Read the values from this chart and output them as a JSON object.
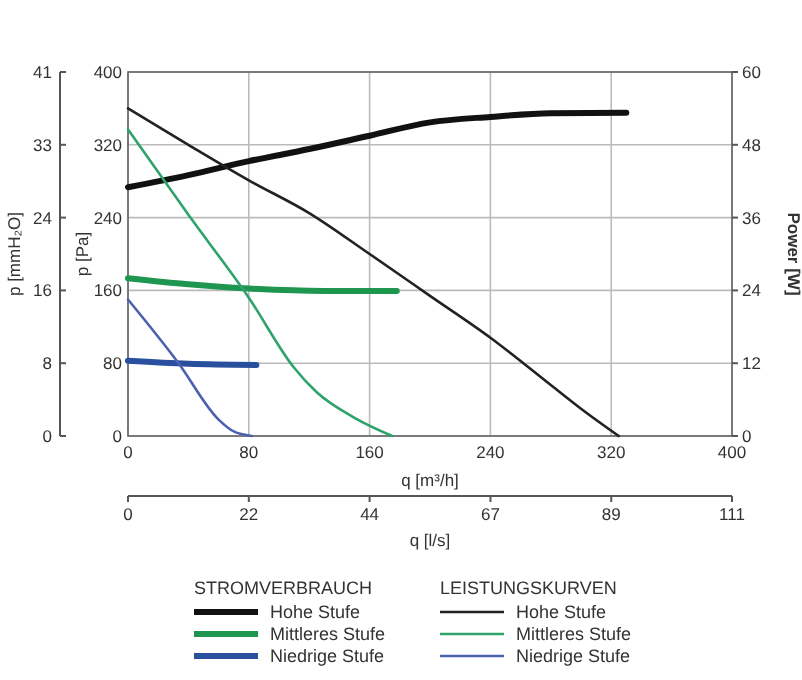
{
  "chart_data": {
    "type": "line",
    "xlabel": "q [m³/h]",
    "ylabel": "p [Pa]",
    "y2label": "Power [W]",
    "y3label": "p [mmH₂O]",
    "x2label": "q [l/s]",
    "xlim": [
      0,
      400
    ],
    "xticks": [
      0,
      80,
      160,
      240,
      320,
      400
    ],
    "ylim": [
      0,
      400
    ],
    "yticks": [
      0,
      80,
      160,
      240,
      320,
      400
    ],
    "y2lim": [
      0,
      60
    ],
    "y2ticks": [
      0,
      12,
      24,
      36,
      48,
      60
    ],
    "y3lim": [
      0,
      40.789
    ],
    "y3ticks": [
      0,
      {
        "value": 8.158,
        "label": "8"
      },
      {
        "value": 16.315,
        "label": "16"
      },
      {
        "value": 24.473,
        "label": "24"
      },
      {
        "value": 32.631,
        "label": "33"
      },
      {
        "value": 40.789,
        "label": "41"
      }
    ],
    "x2lim": [
      0,
      111.1
    ],
    "x2ticks": [
      0,
      {
        "value": 22.22,
        "label": "22"
      },
      {
        "value": 44.44,
        "label": "44"
      },
      {
        "value": 66.67,
        "label": "67"
      },
      {
        "value": 88.89,
        "label": "89"
      },
      {
        "value": 111.1,
        "label": "111"
      }
    ],
    "grid": true,
    "legend": "bottom",
    "annotations": [
      "STROMVERBRAUCH",
      "LEISTUNGSKURVEN"
    ],
    "series": [
      {
        "name": "Hohe Stufe",
        "color": "#111111",
        "axis": "y2",
        "x": [
          0,
          40,
          80,
          120,
          160,
          200,
          240,
          280,
          330
        ],
        "values": [
          41,
          43,
          45.3,
          47.3,
          49.5,
          51.7,
          52.6,
          53.2,
          53.3
        ]
      },
      {
        "name": "Mittleres Stufe",
        "color": "#1e9650",
        "axis": "y2",
        "x": [
          0,
          40,
          80,
          130,
          178
        ],
        "values": [
          26,
          25,
          24.3,
          23.9,
          23.9
        ]
      },
      {
        "name": "Niedrige Stufe",
        "color": "#2a4f9e",
        "axis": "y2",
        "x": [
          0,
          40,
          85
        ],
        "values": [
          12.4,
          11.9,
          11.7
        ]
      },
      {
        "name": "Hohe Stufe",
        "color": "#222222",
        "x": [
          0,
          40,
          80,
          120,
          160,
          200,
          240,
          280,
          300,
          325
        ],
        "values": [
          360,
          320,
          281,
          245,
          200,
          154,
          108,
          56,
          30,
          0
        ]
      },
      {
        "name": "Mittleres Stufe",
        "color": "#2fa36c",
        "x": [
          0,
          40,
          80,
          110,
          125,
          150,
          175
        ],
        "values": [
          337,
          243,
          152,
          75,
          48,
          20,
          0
        ]
      },
      {
        "name": "Niedrige Stufe",
        "color": "#4b62b0",
        "x": [
          0,
          33,
          60,
          70,
          82
        ],
        "values": [
          150,
          81,
          18,
          5,
          0
        ]
      }
    ]
  }
}
